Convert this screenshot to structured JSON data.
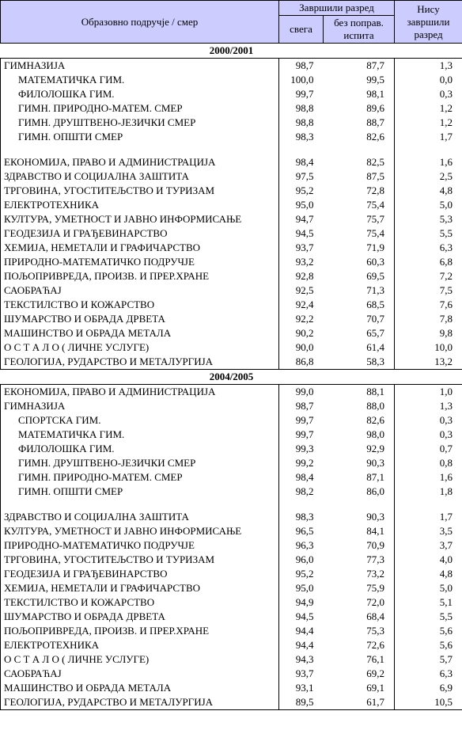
{
  "header": {
    "col0": "Образовно подручје / смер",
    "group1": "Завршили разред",
    "col1": "свега",
    "col2": "без поправ. испита",
    "col3": "Нису завршили разред"
  },
  "sections": [
    {
      "title": "2000/2001",
      "rows": [
        {
          "label": "ГИМНАЗИЈА",
          "v": [
            "98,7",
            "87,7",
            "1,3"
          ],
          "indent": 0
        },
        {
          "label": "МАТЕМАТИЧКА ГИМ.",
          "v": [
            "100,0",
            "99,5",
            "0,0"
          ],
          "indent": 1
        },
        {
          "label": "ФИЛОЛОШКА ГИМ.",
          "v": [
            "99,7",
            "98,1",
            "0,3"
          ],
          "indent": 1
        },
        {
          "label": "ГИМН. ПРИРОДНО-МАТЕМ. СМЕР",
          "v": [
            "98,8",
            "89,6",
            "1,2"
          ],
          "indent": 1
        },
        {
          "label": "ГИМН. ДРУШТВЕНО-ЈЕЗИЧКИ СМЕР",
          "v": [
            "98,8",
            "88,7",
            "1,2"
          ],
          "indent": 1
        },
        {
          "label": "ГИМН. ОПШТИ СМЕР",
          "v": [
            "98,3",
            "82,6",
            "1,7"
          ],
          "indent": 1
        },
        {
          "spacer": true
        },
        {
          "label": "ЕКОНОМИЈА, ПРАВО И АДМИНИСТРАЦИЈА",
          "v": [
            "98,4",
            "82,5",
            "1,6"
          ],
          "indent": 0
        },
        {
          "label": "ЗДРАВСТВО И СОЦИЈАЛНА ЗАШТИТА",
          "v": [
            "97,5",
            "87,5",
            "2,5"
          ],
          "indent": 0
        },
        {
          "label": "ТРГОВИНА, УГОСТИТЕЉСТВО И ТУРИЗАМ",
          "v": [
            "95,2",
            "72,8",
            "4,8"
          ],
          "indent": 0
        },
        {
          "label": "ЕЛЕКТРОТЕХНИКА",
          "v": [
            "95,0",
            "75,4",
            "5,0"
          ],
          "indent": 0
        },
        {
          "label": "КУЛТУРА, УМЕТНОСТ И ЈАВНО ИНФОРМИСАЊЕ",
          "v": [
            "94,7",
            "75,7",
            "5,3"
          ],
          "indent": 0
        },
        {
          "label": "ГЕОДЕЗИЈА И ГРАЂЕВИНАРСТВО",
          "v": [
            "94,5",
            "75,4",
            "5,5"
          ],
          "indent": 0
        },
        {
          "label": "ХЕМИЈА, НЕМЕТАЛИ И ГРАФИЧАРСТВО",
          "v": [
            "93,7",
            "71,9",
            "6,3"
          ],
          "indent": 0
        },
        {
          "label": "ПРИРОДНО-МАТЕМАТИЧКО ПОДРУЧЈЕ",
          "v": [
            "93,2",
            "60,3",
            "6,8"
          ],
          "indent": 0
        },
        {
          "label": "ПОЉОПРИВРЕДА, ПРОИЗВ. И ПРЕР.ХРАНЕ",
          "v": [
            "92,8",
            "69,5",
            "7,2"
          ],
          "indent": 0
        },
        {
          "label": "САОБРАЋАЈ",
          "v": [
            "92,5",
            "71,3",
            "7,5"
          ],
          "indent": 0
        },
        {
          "label": "ТЕКСТИЛСТВО И КОЖАРСТВО",
          "v": [
            "92,4",
            "68,5",
            "7,6"
          ],
          "indent": 0
        },
        {
          "label": "ШУМАРСТВО И ОБРАДА ДРВЕТА",
          "v": [
            "92,2",
            "70,7",
            "7,8"
          ],
          "indent": 0
        },
        {
          "label": "МАШИНСТВО И ОБРАДА МЕТАЛА",
          "v": [
            "90,2",
            "65,7",
            "9,8"
          ],
          "indent": 0
        },
        {
          "label": "О С Т А Л О ( ЛИЧНЕ УСЛУГЕ)",
          "v": [
            "90,0",
            "61,4",
            "10,0"
          ],
          "indent": 0
        },
        {
          "label": "ГЕОЛОГИЈА, РУДАРСТВО И МЕТАЛУРГИЈА",
          "v": [
            "86,8",
            "58,3",
            "13,2"
          ],
          "indent": 0
        }
      ]
    },
    {
      "title": "2004/2005",
      "rows": [
        {
          "label": "ЕКОНОМИЈА, ПРАВО И АДМИНИСТРАЦИЈА",
          "v": [
            "99,0",
            "88,1",
            "1,0"
          ],
          "indent": 0
        },
        {
          "label": "ГИМНАЗИЈА",
          "v": [
            "98,7",
            "88,0",
            "1,3"
          ],
          "indent": 0
        },
        {
          "label": "СПОРТСКА ГИМ.",
          "v": [
            "99,7",
            "82,6",
            "0,3"
          ],
          "indent": 1
        },
        {
          "label": "МАТЕМАТИЧКА ГИМ.",
          "v": [
            "99,7",
            "98,0",
            "0,3"
          ],
          "indent": 1
        },
        {
          "label": "ФИЛОЛОШКА ГИМ.",
          "v": [
            "99,3",
            "92,9",
            "0,7"
          ],
          "indent": 1
        },
        {
          "label": "ГИМН. ДРУШТВЕНО-ЈЕЗИЧКИ СМЕР",
          "v": [
            "99,2",
            "90,3",
            "0,8"
          ],
          "indent": 1
        },
        {
          "label": "ГИМН. ПРИРОДНО-МАТЕМ. СМЕР",
          "v": [
            "98,4",
            "87,1",
            "1,6"
          ],
          "indent": 1
        },
        {
          "label": "ГИМН. ОПШТИ СМЕР",
          "v": [
            "98,2",
            "86,0",
            "1,8"
          ],
          "indent": 1
        },
        {
          "spacer": true
        },
        {
          "label": "ЗДРАВСТВО И СОЦИЈАЛНА ЗАШТИТА",
          "v": [
            "98,3",
            "90,3",
            "1,7"
          ],
          "indent": 0
        },
        {
          "label": "КУЛТУРА, УМЕТНОСТ И ЈАВНО ИНФОРМИСАЊЕ",
          "v": [
            "96,5",
            "84,1",
            "3,5"
          ],
          "indent": 0
        },
        {
          "label": "ПРИРОДНО-МАТЕМАТИЧКО ПОДРУЧЈЕ",
          "v": [
            "96,3",
            "70,9",
            "3,7"
          ],
          "indent": 0
        },
        {
          "label": "ТРГОВИНА, УГОСТИТЕЉСТВО И ТУРИЗАМ",
          "v": [
            "96,0",
            "77,3",
            "4,0"
          ],
          "indent": 0
        },
        {
          "label": "ГЕОДЕЗИЈА И ГРАЂЕВИНАРСТВО",
          "v": [
            "95,2",
            "73,2",
            "4,8"
          ],
          "indent": 0
        },
        {
          "label": "ХЕМИЈА, НЕМЕТАЛИ И ГРАФИЧАРСТВО",
          "v": [
            "95,0",
            "75,9",
            "5,0"
          ],
          "indent": 0
        },
        {
          "label": "ТЕКСТИЛСТВО И КОЖАРСТВО",
          "v": [
            "94,9",
            "72,0",
            "5,1"
          ],
          "indent": 0
        },
        {
          "label": "ШУМАРСТВО И ОБРАДА ДРВЕТА",
          "v": [
            "94,5",
            "68,4",
            "5,5"
          ],
          "indent": 0
        },
        {
          "label": "ПОЉОПРИВРЕДА, ПРОИЗВ. И ПРЕР.ХРАНЕ",
          "v": [
            "94,4",
            "75,3",
            "5,6"
          ],
          "indent": 0
        },
        {
          "label": "ЕЛЕКТРОТЕХНИКА",
          "v": [
            "94,4",
            "72,6",
            "5,6"
          ],
          "indent": 0
        },
        {
          "label": "О С Т А Л О ( ЛИЧНЕ УСЛУГЕ)",
          "v": [
            "94,3",
            "76,1",
            "5,7"
          ],
          "indent": 0
        },
        {
          "label": "САОБРАЋАЈ",
          "v": [
            "93,7",
            "69,2",
            "6,3"
          ],
          "indent": 0
        },
        {
          "label": "МАШИНСТВО И ОБРАДА МЕТАЛА",
          "v": [
            "93,1",
            "69,1",
            "6,9"
          ],
          "indent": 0
        },
        {
          "label": "ГЕОЛОГИЈА, РУДАРСТВО И МЕТАЛУРГИЈА",
          "v": [
            "89,5",
            "61,7",
            "10,5"
          ],
          "indent": 0
        }
      ]
    }
  ]
}
